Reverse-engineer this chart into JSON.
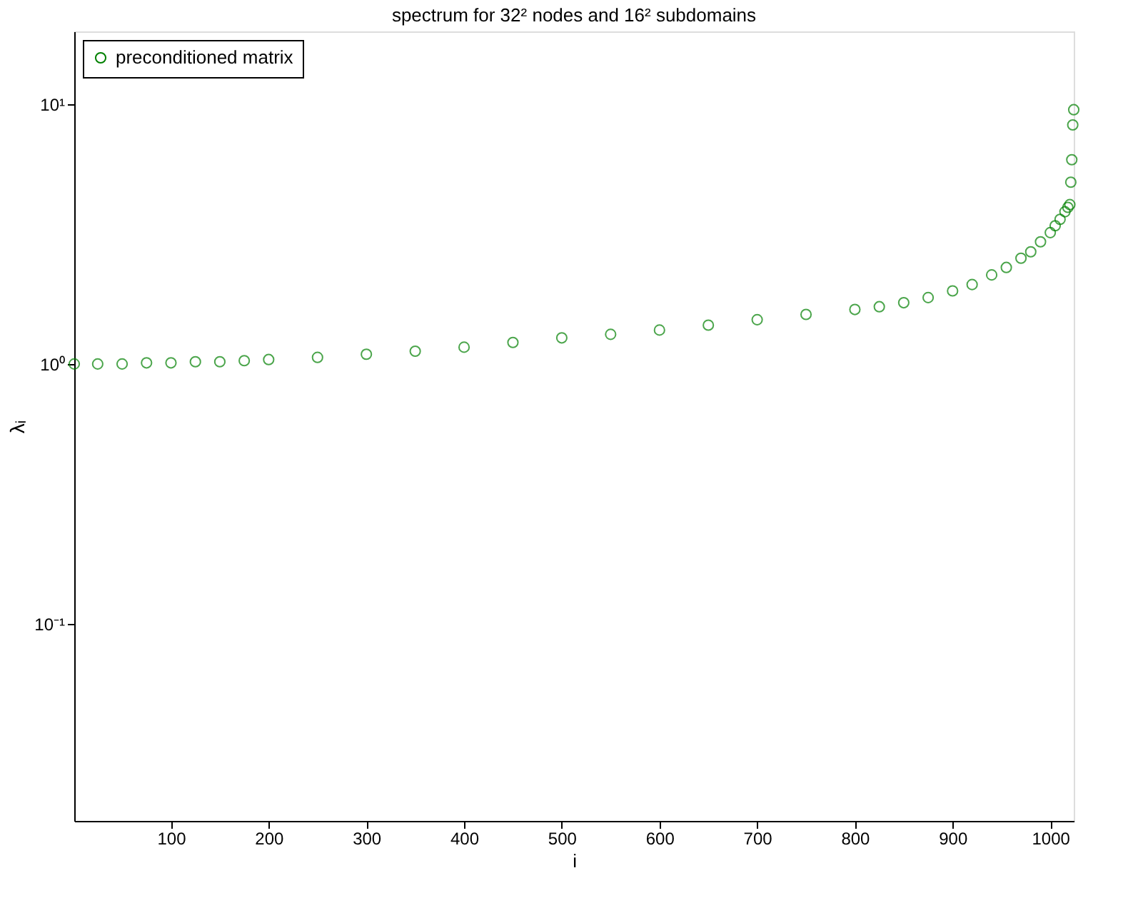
{
  "chart_data": {
    "type": "scatter",
    "title": "spectrum for 32² nodes and 16² subdomains",
    "xlabel": "i",
    "ylabel": "λᵢ",
    "x": [
      1,
      25,
      50,
      75,
      100,
      125,
      150,
      175,
      200,
      250,
      300,
      350,
      400,
      450,
      500,
      550,
      600,
      650,
      700,
      750,
      800,
      825,
      850,
      875,
      900,
      920,
      940,
      955,
      970,
      980,
      990,
      1000,
      1005,
      1010,
      1015,
      1018,
      1020,
      1021,
      1022,
      1023,
      1024
    ],
    "series": [
      {
        "name": "preconditioned matrix",
        "color": "#008000",
        "values": [
          1.0,
          1.0,
          1.0,
          1.01,
          1.01,
          1.02,
          1.02,
          1.03,
          1.04,
          1.06,
          1.09,
          1.12,
          1.16,
          1.21,
          1.26,
          1.3,
          1.35,
          1.41,
          1.48,
          1.55,
          1.62,
          1.66,
          1.72,
          1.8,
          1.91,
          2.02,
          2.2,
          2.35,
          2.55,
          2.7,
          2.95,
          3.2,
          3.4,
          3.6,
          3.85,
          4.0,
          4.1,
          5.0,
          6.1,
          8.3,
          9.5
        ]
      }
    ],
    "xlim": [
      1,
      1024
    ],
    "xticks": [
      100,
      200,
      300,
      400,
      500,
      600,
      700,
      800,
      900,
      1000
    ],
    "ylim": [
      0.0175,
      19
    ],
    "yticks": [
      {
        "value": 0.1,
        "label": "10⁻¹"
      },
      {
        "value": 1,
        "label": "10⁰"
      },
      {
        "value": 10,
        "label": "10¹"
      }
    ],
    "log": "y",
    "grid": false,
    "legend": "top left",
    "marker": "circle"
  }
}
